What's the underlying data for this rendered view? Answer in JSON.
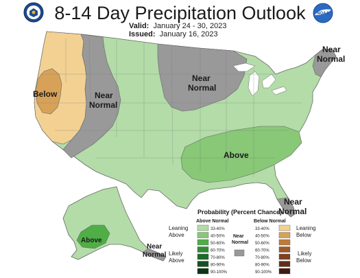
{
  "header": {
    "title": "8-14 Day Precipitation Outlook",
    "valid_label": "Valid:",
    "valid_value": "January 24 - 30, 2023",
    "issued_label": "Issued:",
    "issued_value": "January 16, 2023",
    "left_logo": "doc-seal-icon",
    "right_logo": "noaa-logo-icon",
    "right_logo_text": "NOAA"
  },
  "map": {
    "labels": {
      "below_west": "Below",
      "near_normal_rockies": [
        "Near",
        "Normal"
      ],
      "near_normal_north": [
        "Near",
        "Normal"
      ],
      "near_normal_ne": [
        "Near",
        "Normal"
      ],
      "above_south": "Above",
      "near_normal_fl": [
        "Near",
        "Normal"
      ],
      "above_alaska": "Above",
      "near_normal_ak": [
        "Near",
        "Normal"
      ]
    },
    "colors": {
      "near_normal": "#999999",
      "above_33_40": "#b3dca8",
      "above_40_50": "#88c877",
      "below_33_40": "#f2d193",
      "below_40_50": "#d7a258",
      "ocean": "#ffffff"
    }
  },
  "legend": {
    "title": "Probability (Percent Chance)",
    "above_header": "Above Normal",
    "below_header": "Below Normal",
    "near_normal_label": [
      "Near",
      "Normal"
    ],
    "leaning_above": [
      "Leaning",
      "Above"
    ],
    "likely_above": [
      "Likely",
      "Above"
    ],
    "leaning_below": [
      "Leaning",
      "Below"
    ],
    "likely_below": [
      "Likely",
      "Below"
    ],
    "above_bins": [
      {
        "label": "33-40%",
        "color": "#b3dca8"
      },
      {
        "label": "40-50%",
        "color": "#88c877"
      },
      {
        "label": "50-60%",
        "color": "#4fae45"
      },
      {
        "label": "60-70%",
        "color": "#2f8c36"
      },
      {
        "label": "70-80%",
        "color": "#1e6a28"
      },
      {
        "label": "80-90%",
        "color": "#155020"
      },
      {
        "label": "90-100%",
        "color": "#0b3515"
      }
    ],
    "below_bins": [
      {
        "label": "33-40%",
        "color": "#f2d193"
      },
      {
        "label": "40-50%",
        "color": "#d7a258"
      },
      {
        "label": "50-60%",
        "color": "#c07a36"
      },
      {
        "label": "60-70%",
        "color": "#a0582a"
      },
      {
        "label": "70-80%",
        "color": "#7f4020"
      },
      {
        "label": "80-90%",
        "color": "#602d17"
      },
      {
        "label": "90-100%",
        "color": "#3f1c10"
      }
    ],
    "near_normal_color": "#999999"
  }
}
